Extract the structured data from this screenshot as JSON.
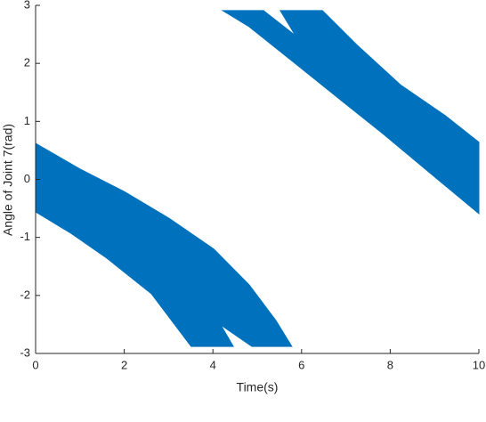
{
  "chart_data": {
    "type": "area",
    "ylabel": "Angle of Joint 7(rad)",
    "xlabel": "Time(s)",
    "series": [
      {
        "color": "#0072bd",
        "x": [
          0,
          1.0,
          2.0,
          3.01,
          4.02,
          4.82,
          5.42,
          5.78,
          4.88,
          4.18,
          4.46,
          3.51,
          2.61,
          1.61,
          0.8,
          0
        ],
        "y": [
          0.62,
          0.18,
          -0.21,
          -0.67,
          -1.2,
          -1.82,
          -2.43,
          -2.88,
          -2.88,
          -2.51,
          -2.88,
          -2.88,
          -1.97,
          -1.36,
          -0.93,
          -0.56
        ]
      },
      {
        "color": "#0072bd",
        "x": [
          4.22,
          5.14,
          5.86,
          5.52,
          6.47,
          7.23,
          8.23,
          9.24,
          10,
          10,
          9.04,
          7.83,
          6.83,
          5.82,
          4.82
        ],
        "y": [
          2.91,
          2.91,
          2.48,
          2.91,
          2.91,
          2.33,
          1.63,
          1.1,
          0.64,
          -0.59,
          0.02,
          0.79,
          1.4,
          2.02,
          2.63
        ]
      }
    ],
    "xlim": [
      0,
      10
    ],
    "xticks": [
      0,
      2,
      4,
      6,
      8,
      10
    ],
    "ylim": [
      -3,
      3
    ],
    "yticks": [
      -3,
      -2,
      -1,
      0,
      1,
      2,
      3
    ]
  }
}
